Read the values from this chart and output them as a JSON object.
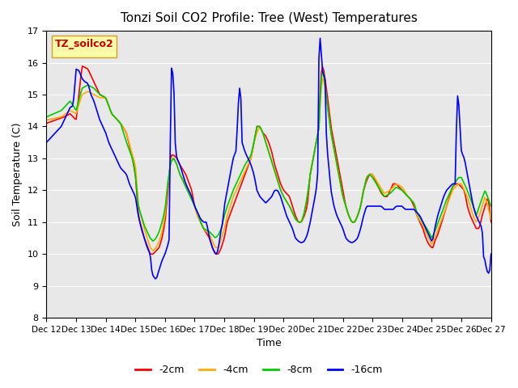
{
  "title": "Tonzi Soil CO2 Profile: Tree (West) Temperatures",
  "xlabel": "Time",
  "ylabel": "Soil Temperature (C)",
  "ylim": [
    8.0,
    17.0
  ],
  "yticks": [
    8.0,
    9.0,
    10.0,
    11.0,
    12.0,
    13.0,
    14.0,
    15.0,
    16.0,
    17.0
  ],
  "series_colors": [
    "#ff0000",
    "#ffaa00",
    "#00cc00",
    "#0000ff"
  ],
  "series_labels": [
    "-2cm",
    "-4cm",
    "-8cm",
    "-16cm"
  ],
  "background_color": "#ffffff",
  "plot_bg_color": "#e8e8e8",
  "legend_box_color": "#ffff99",
  "legend_box_edge": "#cc8800",
  "legend_label": "TZ_soilco2",
  "xtick_labels": [
    "Dec 12",
    "Dec 13",
    "Dec 14",
    "Dec 15",
    "Dec 16",
    "Dec 17",
    "Dec 18",
    "Dec 19",
    "Dec 20",
    "Dec 21",
    "Dec 22",
    "Dec 23",
    "Dec 24",
    "Dec 25",
    "Dec 26",
    "Dec 27"
  ],
  "grid_color": "#ffffff",
  "n_points": 360,
  "days": 15
}
